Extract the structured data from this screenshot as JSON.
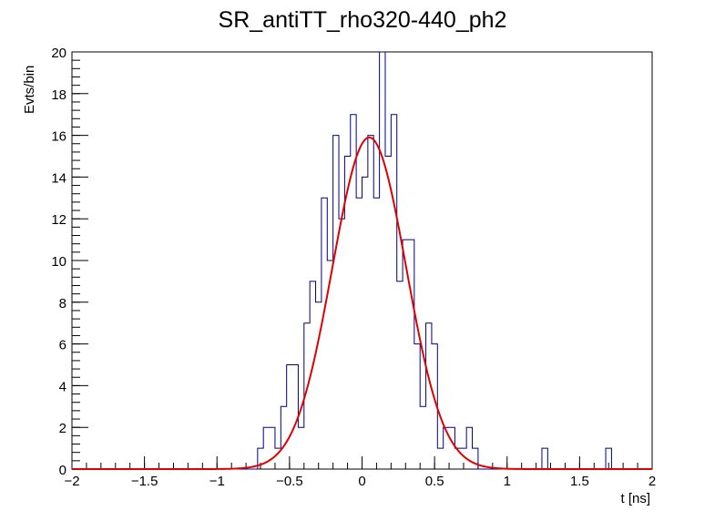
{
  "chart_data": {
    "type": "histogram",
    "title": "SR_antiTT_rho320-440_ph2",
    "xlabel": "t [ns]",
    "ylabel": "Evts/bin",
    "xlim": [
      -2,
      2
    ],
    "ylim": [
      0,
      20
    ],
    "x_ticks": [
      "−2",
      "−1.5",
      "−1",
      "−0.5",
      "0",
      "0.5",
      "1",
      "1.5",
      "2"
    ],
    "y_ticks": [
      "0",
      "2",
      "4",
      "6",
      "8",
      "10",
      "12",
      "14",
      "16",
      "18",
      "20"
    ],
    "grid": false,
    "legend": "none",
    "bin_width": 0.04,
    "series": [
      {
        "kind": "histogram",
        "color": "#000080",
        "bins": [
          {
            "x": -0.72,
            "y": 1
          },
          {
            "x": -0.68,
            "y": 2
          },
          {
            "x": -0.64,
            "y": 2
          },
          {
            "x": -0.6,
            "y": 1
          },
          {
            "x": -0.56,
            "y": 3
          },
          {
            "x": -0.52,
            "y": 5
          },
          {
            "x": -0.48,
            "y": 5
          },
          {
            "x": -0.44,
            "y": 2
          },
          {
            "x": -0.4,
            "y": 7
          },
          {
            "x": -0.36,
            "y": 9
          },
          {
            "x": -0.32,
            "y": 8
          },
          {
            "x": -0.28,
            "y": 13
          },
          {
            "x": -0.24,
            "y": 10
          },
          {
            "x": -0.2,
            "y": 16
          },
          {
            "x": -0.16,
            "y": 12
          },
          {
            "x": -0.12,
            "y": 15
          },
          {
            "x": -0.08,
            "y": 17
          },
          {
            "x": -0.04,
            "y": 13
          },
          {
            "x": 0.0,
            "y": 14
          },
          {
            "x": 0.04,
            "y": 16
          },
          {
            "x": 0.08,
            "y": 13
          },
          {
            "x": 0.12,
            "y": 20
          },
          {
            "x": 0.16,
            "y": 15
          },
          {
            "x": 0.2,
            "y": 17
          },
          {
            "x": 0.24,
            "y": 9
          },
          {
            "x": 0.28,
            "y": 11
          },
          {
            "x": 0.32,
            "y": 11
          },
          {
            "x": 0.36,
            "y": 6
          },
          {
            "x": 0.4,
            "y": 3
          },
          {
            "x": 0.44,
            "y": 7
          },
          {
            "x": 0.48,
            "y": 6
          },
          {
            "x": 0.52,
            "y": 1
          },
          {
            "x": 0.56,
            "y": 2
          },
          {
            "x": 0.6,
            "y": 2
          },
          {
            "x": 0.64,
            "y": 1
          },
          {
            "x": 0.68,
            "y": 1
          },
          {
            "x": 0.72,
            "y": 2
          },
          {
            "x": 0.76,
            "y": 1
          },
          {
            "x": 0.8,
            "y": 0
          },
          {
            "x": 1.24,
            "y": 1
          },
          {
            "x": 1.68,
            "y": 1
          }
        ]
      },
      {
        "kind": "gaussian-fit",
        "color": "#e00000",
        "amplitude": 15.9,
        "mean": 0.05,
        "sigma": 0.255
      }
    ]
  }
}
